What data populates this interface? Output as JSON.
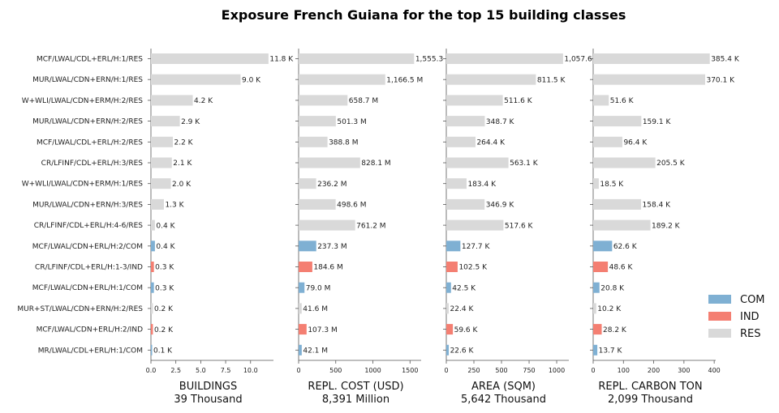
{
  "chart_data": {
    "type": "bar",
    "orientation": "horizontal",
    "title": "Exposure French Guiana for the top 15 building classes",
    "categories": [
      "MCF/LWAL/CDL+ERL/H:1/RES",
      "MUR/LWAL/CDN+ERN/H:1/RES",
      "W+WLI/LWAL/CDN+ERM/H:2/RES",
      "MUR/LWAL/CDN+ERN/H:2/RES",
      "MCF/LWAL/CDL+ERL/H:2/RES",
      "CR/LFINF/CDL+ERL/H:3/RES",
      "W+WLI/LWAL/CDN+ERM/H:1/RES",
      "MUR/LWAL/CDN+ERN/H:3/RES",
      "CR/LFINF/CDL+ERL/H:4-6/RES",
      "MCF/LWAL/CDN+ERL/H:2/COM",
      "CR/LFINF/CDL+ERL/H:1-3/IND",
      "MCF/LWAL/CDN+ERL/H:1/COM",
      "MUR+ST/LWAL/CDN+ERN/H:2/RES",
      "MCF/LWAL/CDN+ERL/H:2/IND",
      "MR/LWAL/CDL+ERL/H:1/COM"
    ],
    "occupancy": [
      "RES",
      "RES",
      "RES",
      "RES",
      "RES",
      "RES",
      "RES",
      "RES",
      "RES",
      "COM",
      "IND",
      "COM",
      "RES",
      "IND",
      "COM"
    ],
    "legend": {
      "position": "right",
      "entries": [
        {
          "name": "COM",
          "color": "#7fb0d3"
        },
        {
          "name": "IND",
          "color": "#f47f72"
        },
        {
          "name": "RES",
          "color": "#d9d9d9"
        }
      ]
    },
    "panels": [
      {
        "xlabel": "BUILDINGS",
        "total": "39 Thousand",
        "xlim": [
          0,
          12.3
        ],
        "ticks": [
          0,
          2.5,
          5,
          7.5,
          10
        ],
        "tick_labels": [
          "0.0",
          "2.5",
          "5.0",
          "7.5",
          "10.0"
        ],
        "unit": "thousand buildings",
        "values": [
          11.8,
          9.0,
          4.2,
          2.9,
          2.2,
          2.1,
          2.0,
          1.3,
          0.4,
          0.4,
          0.3,
          0.3,
          0.2,
          0.2,
          0.1
        ],
        "labels": [
          "11.8 K",
          "9.0 K",
          "4.2 K",
          "2.9 K",
          "2.2 K",
          "2.1 K",
          "2.0 K",
          "1.3 K",
          "0.4 K",
          "0.4 K",
          "0.3 K",
          "0.3 K",
          "0.2 K",
          "0.2 K",
          "0.1 K"
        ]
      },
      {
        "xlabel": "REPL. COST (USD)",
        "total": "8,391 Million",
        "xlim": [
          0,
          1650
        ],
        "ticks": [
          0,
          500,
          1000,
          1500
        ],
        "tick_labels": [
          "0",
          "500",
          "1000",
          "1500"
        ],
        "unit": "million USD",
        "values": [
          1555.3,
          1166.5,
          658.7,
          501.3,
          388.8,
          828.1,
          236.2,
          498.6,
          761.2,
          237.3,
          184.6,
          79.0,
          41.6,
          107.3,
          42.1
        ],
        "labels": [
          "1,555.3",
          "1,166.5 M",
          "658.7 M",
          "501.3 M",
          "388.8 M",
          "828.1 M",
          "236.2 M",
          "498.6 M",
          "761.2 M",
          "237.3 M",
          "184.6 M",
          "79.0 M",
          "41.6 M",
          "107.3 M",
          "42.1 M"
        ]
      },
      {
        "xlabel": "AREA (SQM)",
        "total": "5,642 Thousand",
        "xlim": [
          0,
          1110
        ],
        "ticks": [
          0,
          250,
          500,
          750,
          1000
        ],
        "tick_labels": [
          "0",
          "250",
          "500",
          "750",
          "1000"
        ],
        "unit": "thousand sqm",
        "values": [
          1057.6,
          811.5,
          511.6,
          348.7,
          264.4,
          563.1,
          183.4,
          346.9,
          517.6,
          127.7,
          102.5,
          42.5,
          22.4,
          59.6,
          22.6
        ],
        "labels": [
          "1,057.6",
          "811.5 K",
          "511.6 K",
          "348.7 K",
          "264.4 K",
          "563.1 K",
          "183.4 K",
          "346.9 K",
          "517.6 K",
          "127.7 K",
          "102.5 K",
          "42.5 K",
          "22.4 K",
          "59.6 K",
          "22.6 K"
        ]
      },
      {
        "xlabel": "REPL. CARBON TON",
        "total": "2,099 Thousand",
        "xlim": [
          0,
          405
        ],
        "ticks": [
          0,
          100,
          200,
          300,
          400
        ],
        "tick_labels": [
          "0",
          "100",
          "200",
          "300",
          "400"
        ],
        "unit": "thousand tons",
        "values": [
          385.4,
          370.1,
          51.6,
          159.1,
          96.4,
          205.5,
          18.5,
          158.4,
          189.2,
          62.6,
          48.6,
          20.8,
          10.2,
          28.2,
          13.7
        ],
        "labels": [
          "385.4 K",
          "370.1 K",
          "51.6 K",
          "159.1 K",
          "96.4 K",
          "205.5 K",
          "18.5 K",
          "158.4 K",
          "189.2 K",
          "62.6 K",
          "48.6 K",
          "20.8 K",
          "10.2 K",
          "28.2 K",
          "13.7 K"
        ]
      }
    ]
  }
}
